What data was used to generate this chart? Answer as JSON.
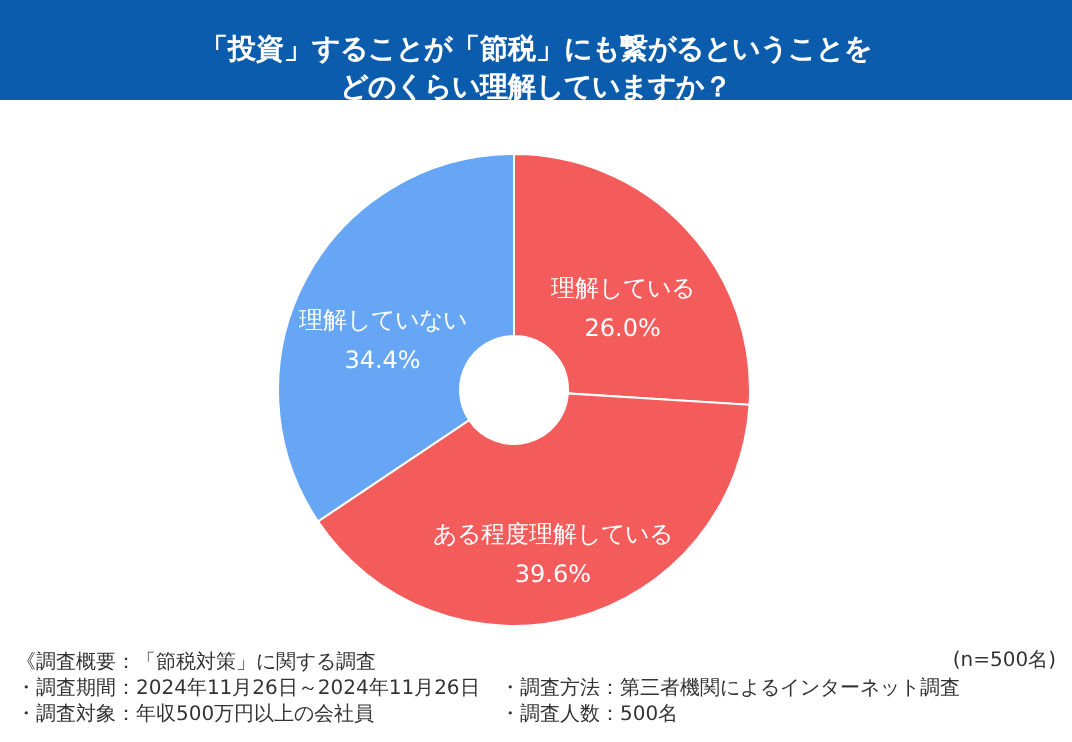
{
  "chart_data": {
    "type": "donut",
    "title": "「投資」することが「節税」にも繋がるということをどのくらい理解していますか？",
    "categories": [
      "理解している",
      "ある程度理解している",
      "理解していない"
    ],
    "values": [
      26.0,
      39.6,
      34.4
    ],
    "colors": [
      "#f45b5b",
      "#f45b5b",
      "#66a6f5"
    ],
    "value_labels": [
      "26.0%",
      "39.6%",
      "34.4%"
    ],
    "annotations": [
      "(n=500名)",
      "《調査概要：「節税対策」に関する調査",
      "・調査期間：2024年11月26日～2024年11月26日",
      "・調査対象：年収500万円以上の会社員",
      "・調査方法：第三者機関によるインターネット調査",
      "・調査人数：500名"
    ]
  }
}
